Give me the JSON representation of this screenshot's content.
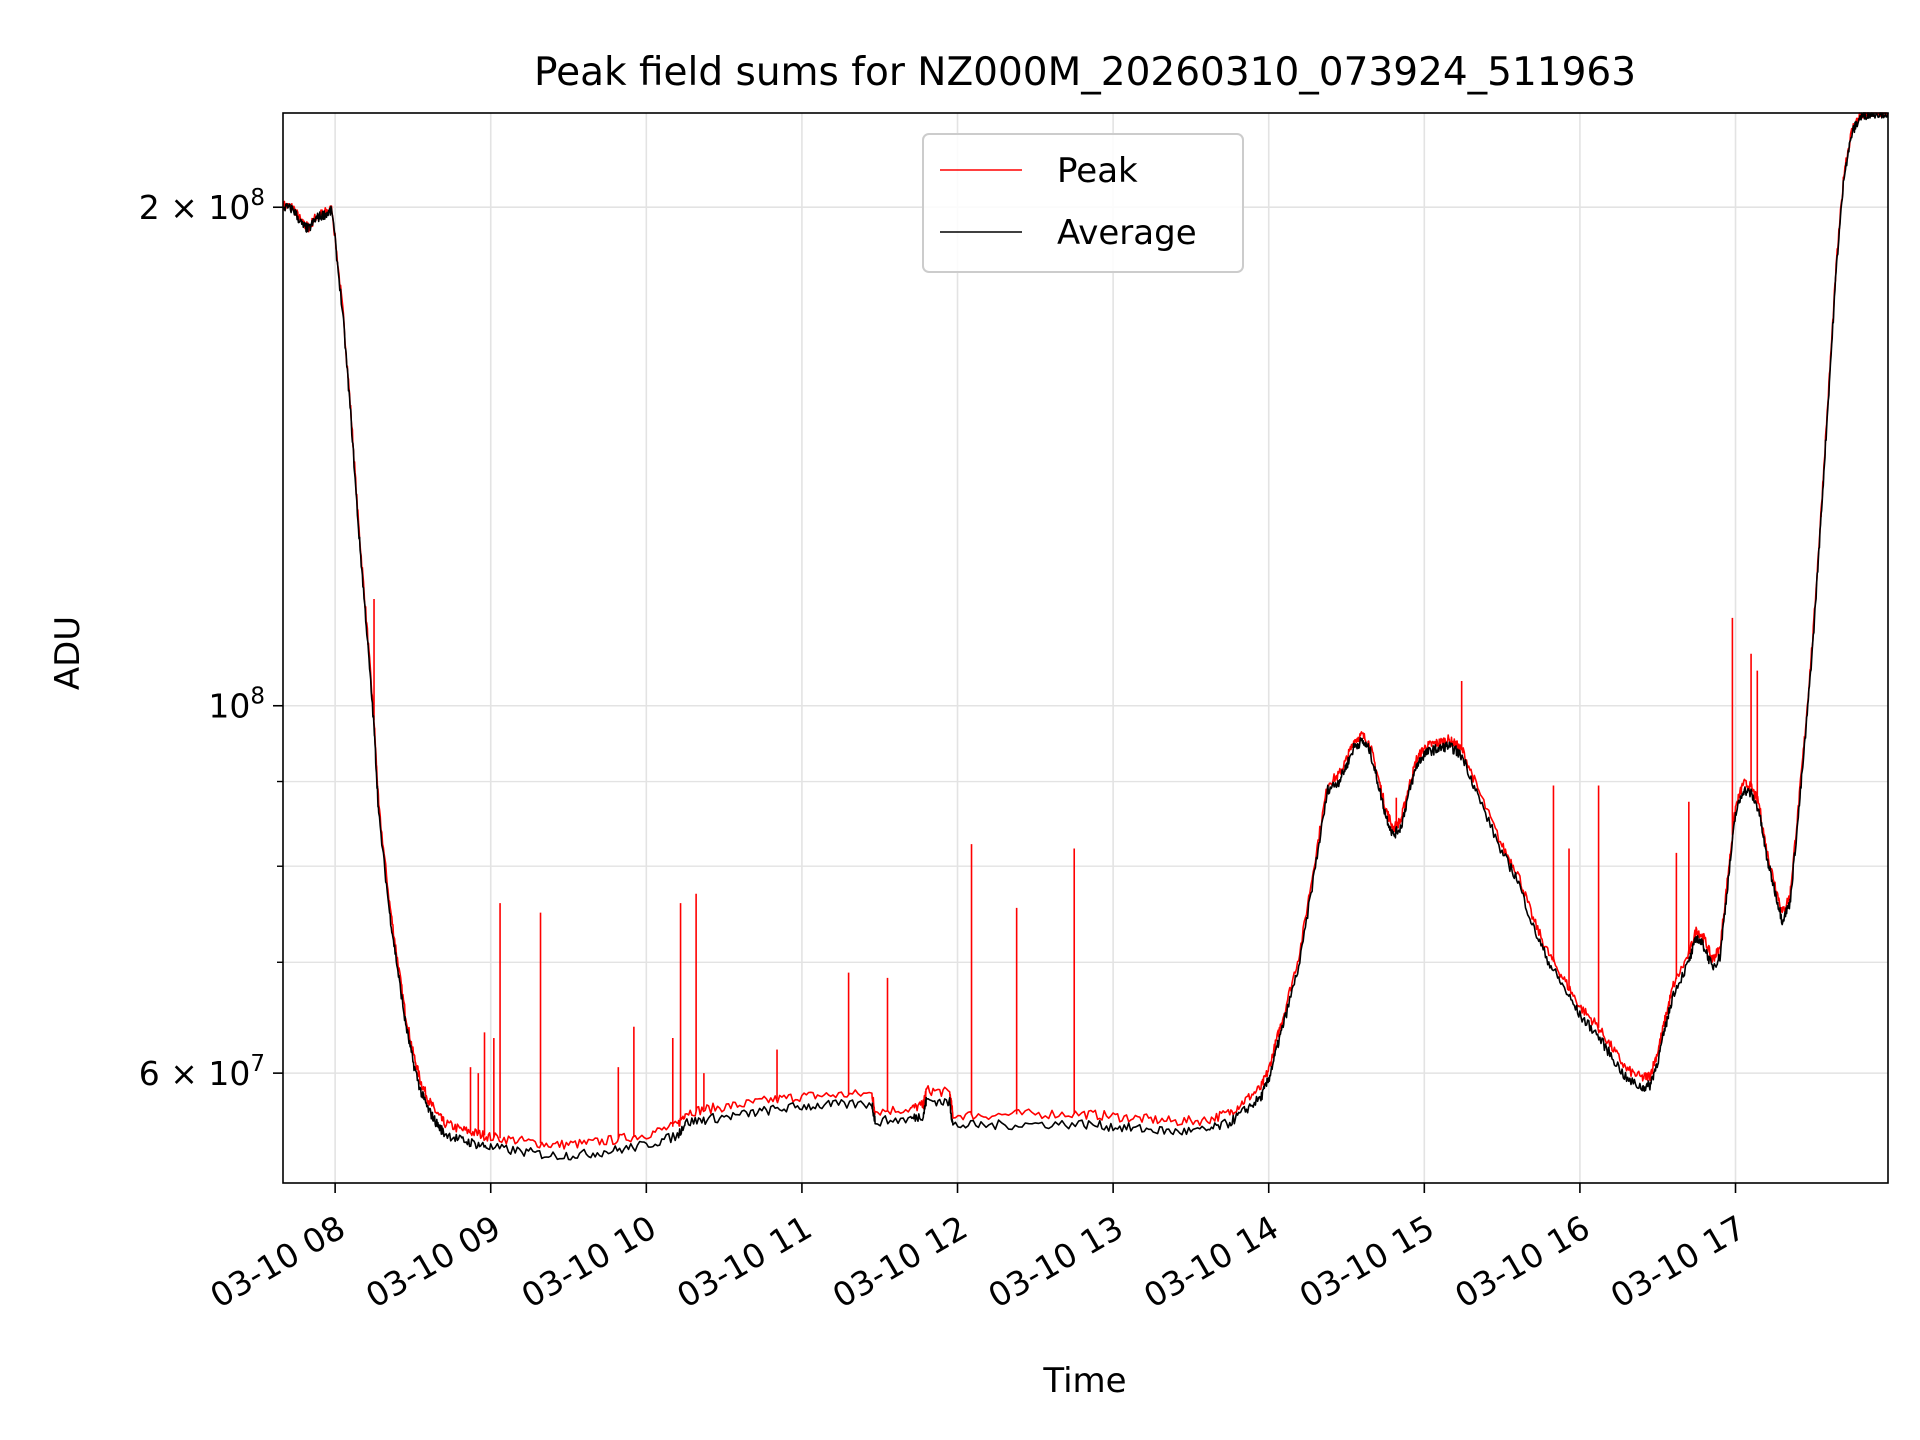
{
  "chart_data": {
    "type": "line",
    "title": "Peak field sums for NZ000M_20260310_073924_511963",
    "xlabel": "Time",
    "ylabel": "ADU",
    "x_unit": "hour of 2026-03-10",
    "xlim": [
      7.665,
      17.98
    ],
    "ylim": [
      51500000,
      228000000
    ],
    "yscale": "log",
    "grid": true,
    "legend": {
      "placement": "top-center"
    },
    "x_ticks": [
      {
        "value": 8,
        "label": "03-10 08"
      },
      {
        "value": 9,
        "label": "03-10 09"
      },
      {
        "value": 10,
        "label": "03-10 10"
      },
      {
        "value": 11,
        "label": "03-10 11"
      },
      {
        "value": 12,
        "label": "03-10 12"
      },
      {
        "value": 13,
        "label": "03-10 13"
      },
      {
        "value": 14,
        "label": "03-10 14"
      },
      {
        "value": 15,
        "label": "03-10 15"
      },
      {
        "value": 16,
        "label": "03-10 16"
      },
      {
        "value": 17,
        "label": "03-10 17"
      }
    ],
    "y_ticks_major": [
      {
        "value": 60000000,
        "base": "6 × 10",
        "exp": "7"
      },
      {
        "value": 100000000,
        "base": "10",
        "exp": "8"
      },
      {
        "value": 200000000,
        "base": "2 × 10",
        "exp": "8"
      }
    ],
    "y_ticks_minor": [
      70000000,
      80000000,
      90000000
    ],
    "series": [
      {
        "name": "Average",
        "color": "#000000",
        "points": [
          [
            7.67,
            200000000
          ],
          [
            7.73,
            199500000
          ],
          [
            7.79,
            195000000
          ],
          [
            7.83,
            194000000
          ],
          [
            7.88,
            197000000
          ],
          [
            7.93,
            198000000
          ],
          [
            7.98,
            199000000
          ],
          [
            8.05,
            172000000
          ],
          [
            8.1,
            150000000
          ],
          [
            8.15,
            128000000
          ],
          [
            8.2,
            112000000
          ],
          [
            8.25,
            97000000
          ],
          [
            8.28,
            86000000
          ],
          [
            8.35,
            75000000
          ],
          [
            8.4,
            69500000
          ],
          [
            8.45,
            64500000
          ],
          [
            8.5,
            61000000
          ],
          [
            8.55,
            58500000
          ],
          [
            8.6,
            57000000
          ],
          [
            8.65,
            56000000
          ],
          [
            8.7,
            55200000
          ],
          [
            8.8,
            54700000
          ],
          [
            8.9,
            54400000
          ],
          [
            9.0,
            54100000
          ],
          [
            9.2,
            53800000
          ],
          [
            9.4,
            53500000
          ],
          [
            9.6,
            53600000
          ],
          [
            9.8,
            53900000
          ],
          [
            10.0,
            54300000
          ],
          [
            10.2,
            55000000
          ],
          [
            10.25,
            56000000
          ],
          [
            10.4,
            56300000
          ],
          [
            10.6,
            56600000
          ],
          [
            10.8,
            57000000
          ],
          [
            11.0,
            57300000
          ],
          [
            11.2,
            57400000
          ],
          [
            11.45,
            57500000
          ],
          [
            11.47,
            56100000
          ],
          [
            11.7,
            56300000
          ],
          [
            11.78,
            56600000
          ],
          [
            11.8,
            57800000
          ],
          [
            11.95,
            57600000
          ],
          [
            11.97,
            55800000
          ],
          [
            12.2,
            55800000
          ],
          [
            12.5,
            55900000
          ],
          [
            12.8,
            55900000
          ],
          [
            13.0,
            55700000
          ],
          [
            13.2,
            55500000
          ],
          [
            13.4,
            55300000
          ],
          [
            13.6,
            55400000
          ],
          [
            13.75,
            56000000
          ],
          [
            13.85,
            57000000
          ],
          [
            13.95,
            58000000
          ],
          [
            14.0,
            59500000
          ],
          [
            14.05,
            62000000
          ],
          [
            14.1,
            64500000
          ],
          [
            14.2,
            70000000
          ],
          [
            14.3,
            80000000
          ],
          [
            14.38,
            89000000
          ],
          [
            14.45,
            90000000
          ],
          [
            14.5,
            92000000
          ],
          [
            14.55,
            94500000
          ],
          [
            14.6,
            95200000
          ],
          [
            14.65,
            94000000
          ],
          [
            14.7,
            90000000
          ],
          [
            14.75,
            86000000
          ],
          [
            14.8,
            83500000
          ],
          [
            14.85,
            84500000
          ],
          [
            14.9,
            88500000
          ],
          [
            14.95,
            92000000
          ],
          [
            15.0,
            93500000
          ],
          [
            15.05,
            94000000
          ],
          [
            15.1,
            94200000
          ],
          [
            15.15,
            94600000
          ],
          [
            15.2,
            94000000
          ],
          [
            15.25,
            93000000
          ],
          [
            15.35,
            88000000
          ],
          [
            15.5,
            81500000
          ],
          [
            15.6,
            78500000
          ],
          [
            15.7,
            73500000
          ],
          [
            15.8,
            70000000
          ],
          [
            15.9,
            67500000
          ],
          [
            16.0,
            65000000
          ],
          [
            16.1,
            63500000
          ],
          [
            16.2,
            61500000
          ],
          [
            16.3,
            59500000
          ],
          [
            16.4,
            58800000
          ],
          [
            16.45,
            59000000
          ],
          [
            16.5,
            61000000
          ],
          [
            16.55,
            64000000
          ],
          [
            16.6,
            67000000
          ],
          [
            16.7,
            70000000
          ],
          [
            16.75,
            72500000
          ],
          [
            16.8,
            71500000
          ],
          [
            16.85,
            69500000
          ],
          [
            16.9,
            70500000
          ],
          [
            16.95,
            78000000
          ],
          [
            17.0,
            86000000
          ],
          [
            17.05,
            89000000
          ],
          [
            17.1,
            88500000
          ],
          [
            17.15,
            86500000
          ],
          [
            17.2,
            81000000
          ],
          [
            17.25,
            77500000
          ],
          [
            17.3,
            74200000
          ],
          [
            17.35,
            76000000
          ],
          [
            17.4,
            85000000
          ],
          [
            17.45,
            96000000
          ],
          [
            17.5,
            110000000
          ],
          [
            17.55,
            130000000
          ],
          [
            17.6,
            155000000
          ],
          [
            17.65,
            185000000
          ],
          [
            17.7,
            210000000
          ],
          [
            17.75,
            222000000
          ],
          [
            17.8,
            226500000
          ],
          [
            17.85,
            227800000
          ],
          [
            17.9,
            228000000
          ],
          [
            17.98,
            228000000
          ]
        ]
      },
      {
        "name": "Peak",
        "color": "#ff0000",
        "points": [
          [
            7.67,
            200500000
          ],
          [
            7.73,
            200000000
          ],
          [
            7.79,
            195500000
          ],
          [
            7.83,
            194500000
          ],
          [
            7.88,
            197500000
          ],
          [
            7.93,
            198500000
          ],
          [
            7.98,
            199500000
          ],
          [
            8.05,
            173000000
          ],
          [
            8.1,
            151000000
          ],
          [
            8.15,
            129000000
          ],
          [
            8.2,
            113000000
          ],
          [
            8.25,
            98000000
          ],
          [
            8.28,
            87000000
          ],
          [
            8.35,
            76000000
          ],
          [
            8.4,
            70300000
          ],
          [
            8.45,
            65300000
          ],
          [
            8.5,
            61800000
          ],
          [
            8.55,
            59300000
          ],
          [
            8.6,
            57800000
          ],
          [
            8.65,
            56800000
          ],
          [
            8.7,
            56000000
          ],
          [
            8.8,
            55500000
          ],
          [
            8.9,
            55200000
          ],
          [
            9.0,
            54900000
          ],
          [
            9.2,
            54600000
          ],
          [
            9.4,
            54300000
          ],
          [
            9.6,
            54400000
          ],
          [
            9.8,
            54700000
          ],
          [
            10.0,
            55100000
          ],
          [
            10.2,
            55800000
          ],
          [
            10.25,
            56800000
          ],
          [
            10.4,
            57100000
          ],
          [
            10.6,
            57400000
          ],
          [
            10.8,
            57800000
          ],
          [
            11.0,
            58100000
          ],
          [
            11.2,
            58200000
          ],
          [
            11.45,
            58300000
          ],
          [
            11.47,
            56900000
          ],
          [
            11.7,
            57100000
          ],
          [
            11.78,
            57400000
          ],
          [
            11.8,
            58600000
          ],
          [
            11.95,
            58400000
          ],
          [
            11.97,
            56600000
          ],
          [
            12.2,
            56600000
          ],
          [
            12.5,
            56700000
          ],
          [
            12.8,
            56700000
          ],
          [
            13.0,
            56500000
          ],
          [
            13.2,
            56300000
          ],
          [
            13.4,
            56100000
          ],
          [
            13.6,
            56200000
          ],
          [
            13.75,
            56800000
          ],
          [
            13.85,
            57800000
          ],
          [
            13.95,
            58800000
          ],
          [
            14.0,
            60300000
          ],
          [
            14.05,
            62800000
          ],
          [
            14.1,
            65300000
          ],
          [
            14.2,
            71000000
          ],
          [
            14.3,
            81000000
          ],
          [
            14.38,
            89800000
          ],
          [
            14.45,
            90800000
          ],
          [
            14.5,
            92800000
          ],
          [
            14.55,
            95300000
          ],
          [
            14.6,
            96000000
          ],
          [
            14.65,
            94800000
          ],
          [
            14.7,
            90800000
          ],
          [
            14.75,
            86800000
          ],
          [
            14.8,
            84300000
          ],
          [
            14.85,
            85300000
          ],
          [
            14.9,
            89300000
          ],
          [
            14.95,
            92800000
          ],
          [
            15.0,
            94300000
          ],
          [
            15.05,
            94800000
          ],
          [
            15.1,
            95000000
          ],
          [
            15.15,
            95400000
          ],
          [
            15.2,
            94800000
          ],
          [
            15.25,
            93800000
          ],
          [
            15.35,
            88800000
          ],
          [
            15.5,
            82300000
          ],
          [
            15.6,
            79300000
          ],
          [
            15.7,
            74300000
          ],
          [
            15.8,
            70800000
          ],
          [
            15.9,
            68300000
          ],
          [
            16.0,
            65800000
          ],
          [
            16.1,
            64300000
          ],
          [
            16.2,
            62300000
          ],
          [
            16.3,
            60300000
          ],
          [
            16.4,
            59600000
          ],
          [
            16.45,
            59800000
          ],
          [
            16.5,
            61800000
          ],
          [
            16.55,
            64800000
          ],
          [
            16.6,
            67800000
          ],
          [
            16.7,
            70800000
          ],
          [
            16.75,
            73300000
          ],
          [
            16.8,
            72300000
          ],
          [
            16.85,
            70300000
          ],
          [
            16.9,
            71300000
          ],
          [
            16.95,
            78800000
          ],
          [
            17.0,
            86800000
          ],
          [
            17.05,
            89800000
          ],
          [
            17.1,
            89300000
          ],
          [
            17.15,
            87300000
          ],
          [
            17.2,
            81800000
          ],
          [
            17.25,
            78300000
          ],
          [
            17.3,
            75000000
          ],
          [
            17.35,
            76800000
          ],
          [
            17.4,
            86000000
          ],
          [
            17.45,
            97000000
          ],
          [
            17.5,
            111000000
          ],
          [
            17.55,
            131000000
          ],
          [
            17.6,
            156000000
          ],
          [
            17.65,
            186000000
          ],
          [
            17.7,
            211000000
          ],
          [
            17.75,
            223000000
          ],
          [
            17.8,
            227200000
          ],
          [
            17.85,
            228000000
          ],
          [
            17.9,
            228000000
          ],
          [
            17.98,
            228000000
          ]
        ],
        "spikes": [
          [
            8.25,
            116000000
          ],
          [
            8.87,
            60500000
          ],
          [
            8.92,
            60000000
          ],
          [
            8.96,
            63500000
          ],
          [
            9.02,
            63000000
          ],
          [
            9.06,
            76000000
          ],
          [
            9.32,
            75000000
          ],
          [
            9.82,
            60500000
          ],
          [
            9.92,
            64000000
          ],
          [
            10.17,
            63000000
          ],
          [
            10.22,
            76000000
          ],
          [
            10.32,
            77000000
          ],
          [
            10.37,
            60000000
          ],
          [
            10.84,
            62000000
          ],
          [
            11.3,
            69000000
          ],
          [
            11.55,
            68500000
          ],
          [
            12.09,
            82500000
          ],
          [
            12.38,
            75500000
          ],
          [
            12.75,
            82000000
          ],
          [
            14.82,
            88000000
          ],
          [
            15.24,
            103500000
          ],
          [
            15.83,
            89500000
          ],
          [
            15.93,
            82000000
          ],
          [
            16.12,
            89500000
          ],
          [
            16.62,
            81500000
          ],
          [
            16.7,
            87500000
          ],
          [
            16.98,
            113000000
          ],
          [
            17.1,
            107500000
          ],
          [
            17.14,
            105000000
          ],
          [
            17.55,
            130000000
          ]
        ]
      }
    ]
  }
}
